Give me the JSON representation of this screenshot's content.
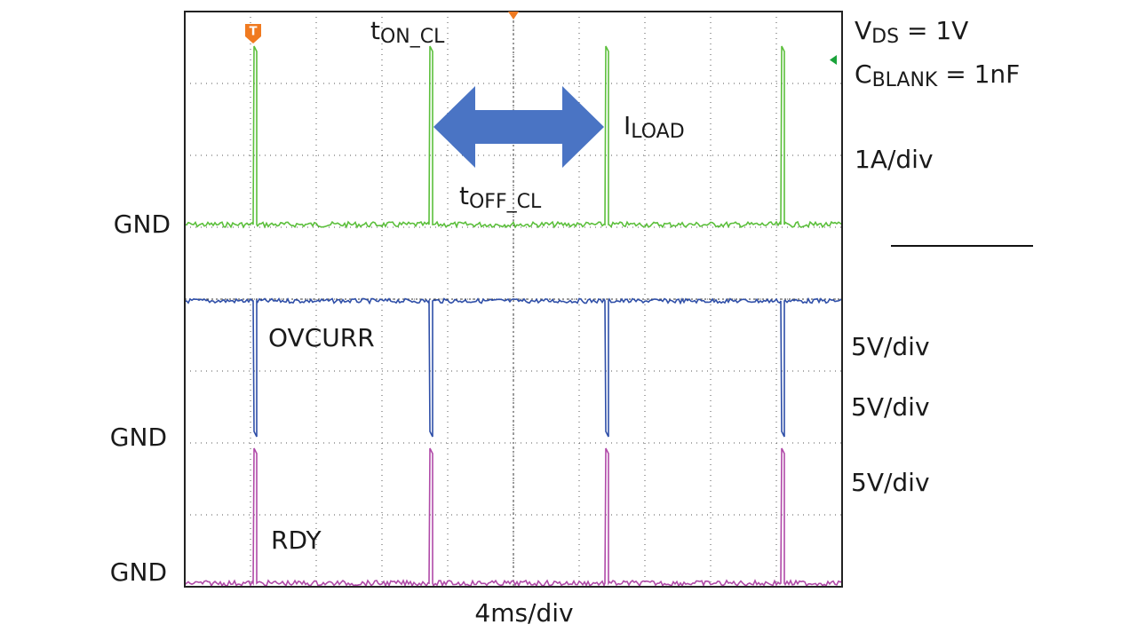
{
  "labels": {
    "vds": {
      "main": "V",
      "sub": "DS",
      "rest": " = 1V"
    },
    "cblank": {
      "main": "C",
      "sub": "BLANK",
      "rest": " = 1nF"
    },
    "iload": {
      "main": "I",
      "sub": "LOAD"
    },
    "ton": {
      "main": "t",
      "sub": "ON_CL"
    },
    "toff": {
      "main": "t",
      "sub": "OFF_CL"
    },
    "scale_current": "1A/div",
    "scale_v1": "5V/div",
    "scale_v2": "5V/div",
    "scale_v3": "5V/div",
    "gnd_1": "GND",
    "gnd_2": "GND",
    "gnd_3": "GND",
    "ovcurr": "OVCURR",
    "rdy": "RDY",
    "timebase": "4ms/div",
    "trigger": "T"
  }
}
